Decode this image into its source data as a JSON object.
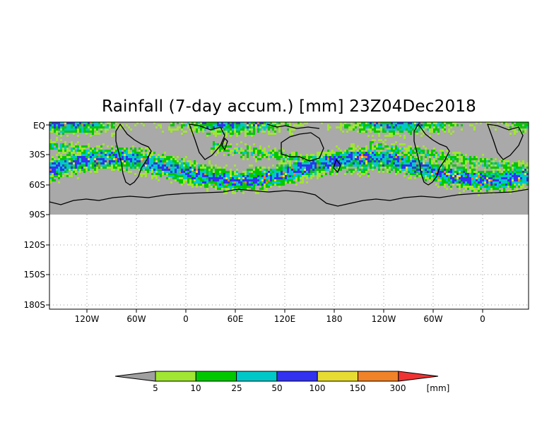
{
  "title": "Rainfall (7-day accum.) [mm] 23Z04Dec2018",
  "y_axis_labels": [
    "EQ",
    "30S",
    "60S",
    "90S",
    "120S",
    "150S",
    "180S"
  ],
  "x_axis_labels": [
    "120W",
    "60W",
    "0",
    "60E",
    "120E",
    "180",
    "120W",
    "60W",
    "0"
  ],
  "colorbar": {
    "unit": "[mm]",
    "thresholds": [
      "5",
      "10",
      "25",
      "50",
      "100",
      "150",
      "300"
    ],
    "colors": [
      "#a0a0a0",
      "#a0e632",
      "#00c800",
      "#00c8c8",
      "#3232f0",
      "#e6dc32",
      "#f08228",
      "#f03232"
    ]
  },
  "map": {
    "ocean_dry_color": "#a9a9a9",
    "plot_background": "#ffffff"
  }
}
